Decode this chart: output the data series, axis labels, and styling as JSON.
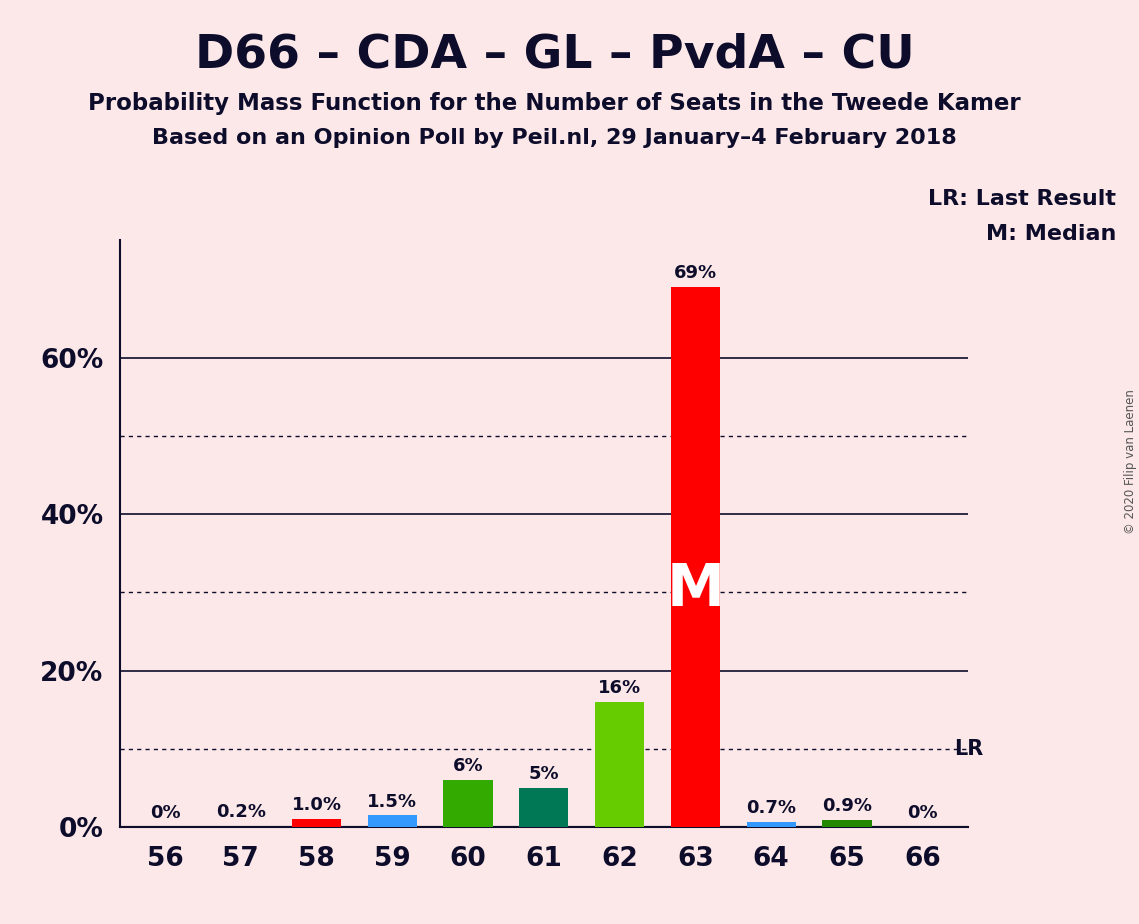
{
  "title": "D66 – CDA – GL – PvdA – CU",
  "subtitle1": "Probability Mass Function for the Number of Seats in the Tweede Kamer",
  "subtitle2": "Based on an Opinion Poll by Peil.nl, 29 January–4 February 2018",
  "copyright": "© 2020 Filip van Laenen",
  "categories": [
    56,
    57,
    58,
    59,
    60,
    61,
    62,
    63,
    64,
    65,
    66
  ],
  "values": [
    0.0,
    0.2,
    1.0,
    1.5,
    6.0,
    5.0,
    16.0,
    69.0,
    0.7,
    0.9,
    0.0
  ],
  "bar_colors": [
    "none",
    "none",
    "#ff0000",
    "#3399ff",
    "#33aa00",
    "#007755",
    "#66cc00",
    "#ff0000",
    "#3399ff",
    "#228800",
    "none"
  ],
  "labels": [
    "0%",
    "0.2%",
    "1.0%",
    "1.5%",
    "6%",
    "5%",
    "16%",
    "69%",
    "0.7%",
    "0.9%",
    "0%"
  ],
  "median_bar": 63,
  "median_label": "M",
  "lr_value": 10.0,
  "lr_label": "LR",
  "legend_lr": "LR: Last Result",
  "legend_m": "M: Median",
  "background_color": "#fce8e8",
  "solid_gridlines": [
    20,
    40,
    60
  ],
  "dotted_gridlines": [
    10,
    30,
    50
  ],
  "yticks": [
    0,
    20,
    40,
    60
  ],
  "ylim": [
    0,
    75
  ],
  "xlim": [
    55.4,
    66.6
  ],
  "text_color": "#0d0d2b"
}
